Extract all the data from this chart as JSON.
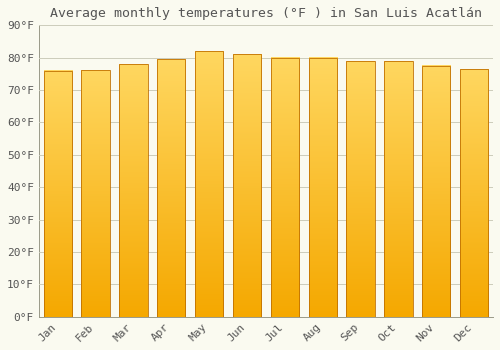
{
  "title": "Average monthly temperatures (°F ) in San Luis Acatlán",
  "months": [
    "Jan",
    "Feb",
    "Mar",
    "Apr",
    "May",
    "Jun",
    "Jul",
    "Aug",
    "Sep",
    "Oct",
    "Nov",
    "Dec"
  ],
  "values": [
    76.0,
    76.2,
    78.0,
    79.5,
    82.0,
    81.0,
    80.0,
    80.0,
    79.0,
    79.0,
    77.5,
    76.5
  ],
  "bar_color_top": "#F5A800",
  "bar_color_bottom": "#FFD760",
  "bar_edge_color": "#C07000",
  "background_color": "#FAFAF0",
  "grid_color": "#CCCCBB",
  "text_color": "#555555",
  "ylabel_ticks": [
    "0°F",
    "10°F",
    "20°F",
    "30°F",
    "40°F",
    "50°F",
    "60°F",
    "70°F",
    "80°F",
    "90°F"
  ],
  "ylim": [
    0,
    90
  ],
  "yticks": [
    0,
    10,
    20,
    30,
    40,
    50,
    60,
    70,
    80,
    90
  ],
  "title_fontsize": 9.5,
  "tick_fontsize": 8,
  "font_family": "monospace"
}
